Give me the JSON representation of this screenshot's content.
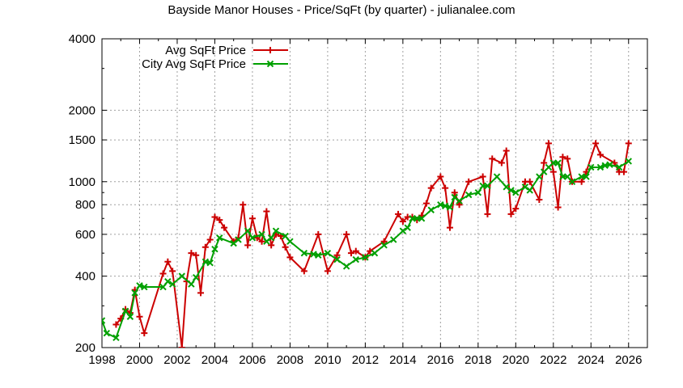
{
  "chart_data": {
    "type": "line",
    "title": "Bayside Manor Houses - Price/SqFt (by quarter) - julianalee.com",
    "xlabel": "",
    "ylabel": "",
    "xlim": [
      1998,
      2027
    ],
    "ylim": [
      200,
      4000
    ],
    "yscale": "log",
    "grid": true,
    "legend_position": "top-left",
    "x_ticks": [
      1998,
      2000,
      2002,
      2004,
      2006,
      2008,
      2010,
      2012,
      2014,
      2016,
      2018,
      2020,
      2022,
      2024,
      2026
    ],
    "y_ticks": [
      200,
      400,
      600,
      800,
      1000,
      1500,
      2000,
      4000
    ],
    "series": [
      {
        "name": "Avg SqFt Price",
        "color": "#cc0000",
        "marker": "plus",
        "x": [
          1998.75,
          1999.0,
          1999.25,
          1999.5,
          1999.75,
          2000.0,
          2000.25,
          2001.25,
          2001.5,
          2001.75,
          2002.25,
          2002.5,
          2002.75,
          2003.0,
          2003.25,
          2003.5,
          2003.75,
          2004.0,
          2004.25,
          2004.5,
          2005.0,
          2005.25,
          2005.5,
          2005.75,
          2006.0,
          2006.25,
          2006.5,
          2006.75,
          2007.0,
          2007.25,
          2007.5,
          2007.75,
          2008.0,
          2008.75,
          2009.5,
          2010.0,
          2010.5,
          2011.0,
          2011.25,
          2011.5,
          2012.0,
          2012.25,
          2013.0,
          2013.75,
          2014.0,
          2014.25,
          2014.5,
          2014.75,
          2015.0,
          2015.25,
          2015.5,
          2016.0,
          2016.25,
          2016.5,
          2016.75,
          2017.0,
          2017.5,
          2018.25,
          2018.5,
          2018.75,
          2019.25,
          2019.5,
          2019.75,
          2020.0,
          2020.5,
          2020.75,
          2021.25,
          2021.5,
          2021.75,
          2022.0,
          2022.25,
          2022.5,
          2022.75,
          2023.0,
          2023.5,
          2023.75,
          2024.25,
          2024.5,
          2025.25,
          2025.5,
          2025.75,
          2026.0
        ],
        "values": [
          250,
          265,
          290,
          280,
          350,
          270,
          230,
          410,
          460,
          420,
          200,
          380,
          500,
          490,
          340,
          530,
          570,
          710,
          690,
          640,
          560,
          580,
          800,
          540,
          700,
          580,
          560,
          750,
          540,
          600,
          590,
          530,
          480,
          420,
          600,
          420,
          490,
          600,
          500,
          510,
          480,
          510,
          560,
          730,
          680,
          710,
          710,
          690,
          720,
          810,
          940,
          1050,
          940,
          640,
          900,
          800,
          1000,
          1050,
          730,
          1250,
          1200,
          1350,
          730,
          770,
          1000,
          1000,
          840,
          1200,
          1450,
          1100,
          780,
          1270,
          1250,
          1000,
          1000,
          1100,
          1450,
          1300,
          1200,
          1100,
          1100,
          1450
        ]
      },
      {
        "name": "City Avg SqFt Price",
        "color": "#00a000",
        "marker": "x",
        "x": [
          1998.0,
          1998.25,
          1998.75,
          1999.25,
          1999.5,
          1999.75,
          2000.0,
          2000.25,
          2001.25,
          2001.5,
          2001.75,
          2002.25,
          2002.75,
          2003.0,
          2003.5,
          2003.75,
          2004.0,
          2004.25,
          2005.0,
          2005.25,
          2005.75,
          2006.0,
          2006.5,
          2006.75,
          2007.0,
          2007.25,
          2007.75,
          2008.0,
          2008.75,
          2009.25,
          2009.5,
          2010.0,
          2010.5,
          2011.0,
          2011.5,
          2012.0,
          2012.5,
          2013.0,
          2013.5,
          2014.0,
          2014.25,
          2014.5,
          2014.75,
          2015.0,
          2015.5,
          2016.0,
          2016.25,
          2016.5,
          2016.75,
          2017.0,
          2017.5,
          2018.0,
          2018.25,
          2018.5,
          2019.0,
          2019.5,
          2019.75,
          2020.0,
          2020.5,
          2020.75,
          2021.25,
          2021.5,
          2021.75,
          2022.0,
          2022.25,
          2022.5,
          2022.75,
          2023.0,
          2023.5,
          2023.75,
          2024.0,
          2024.5,
          2024.75,
          2025.0,
          2025.5,
          2026.0
        ],
        "values": [
          260,
          230,
          220,
          285,
          270,
          340,
          365,
          360,
          360,
          380,
          370,
          400,
          370,
          395,
          460,
          455,
          520,
          580,
          550,
          570,
          620,
          580,
          600,
          560,
          580,
          620,
          590,
          560,
          500,
          495,
          490,
          500,
          470,
          440,
          470,
          480,
          500,
          540,
          570,
          620,
          640,
          700,
          700,
          700,
          760,
          800,
          790,
          780,
          860,
          830,
          880,
          900,
          960,
          960,
          1050,
          950,
          920,
          900,
          950,
          920,
          1050,
          1100,
          1150,
          1200,
          1200,
          1050,
          1050,
          1000,
          1050,
          1050,
          1150,
          1150,
          1170,
          1180,
          1150,
          1220
        ]
      }
    ]
  }
}
